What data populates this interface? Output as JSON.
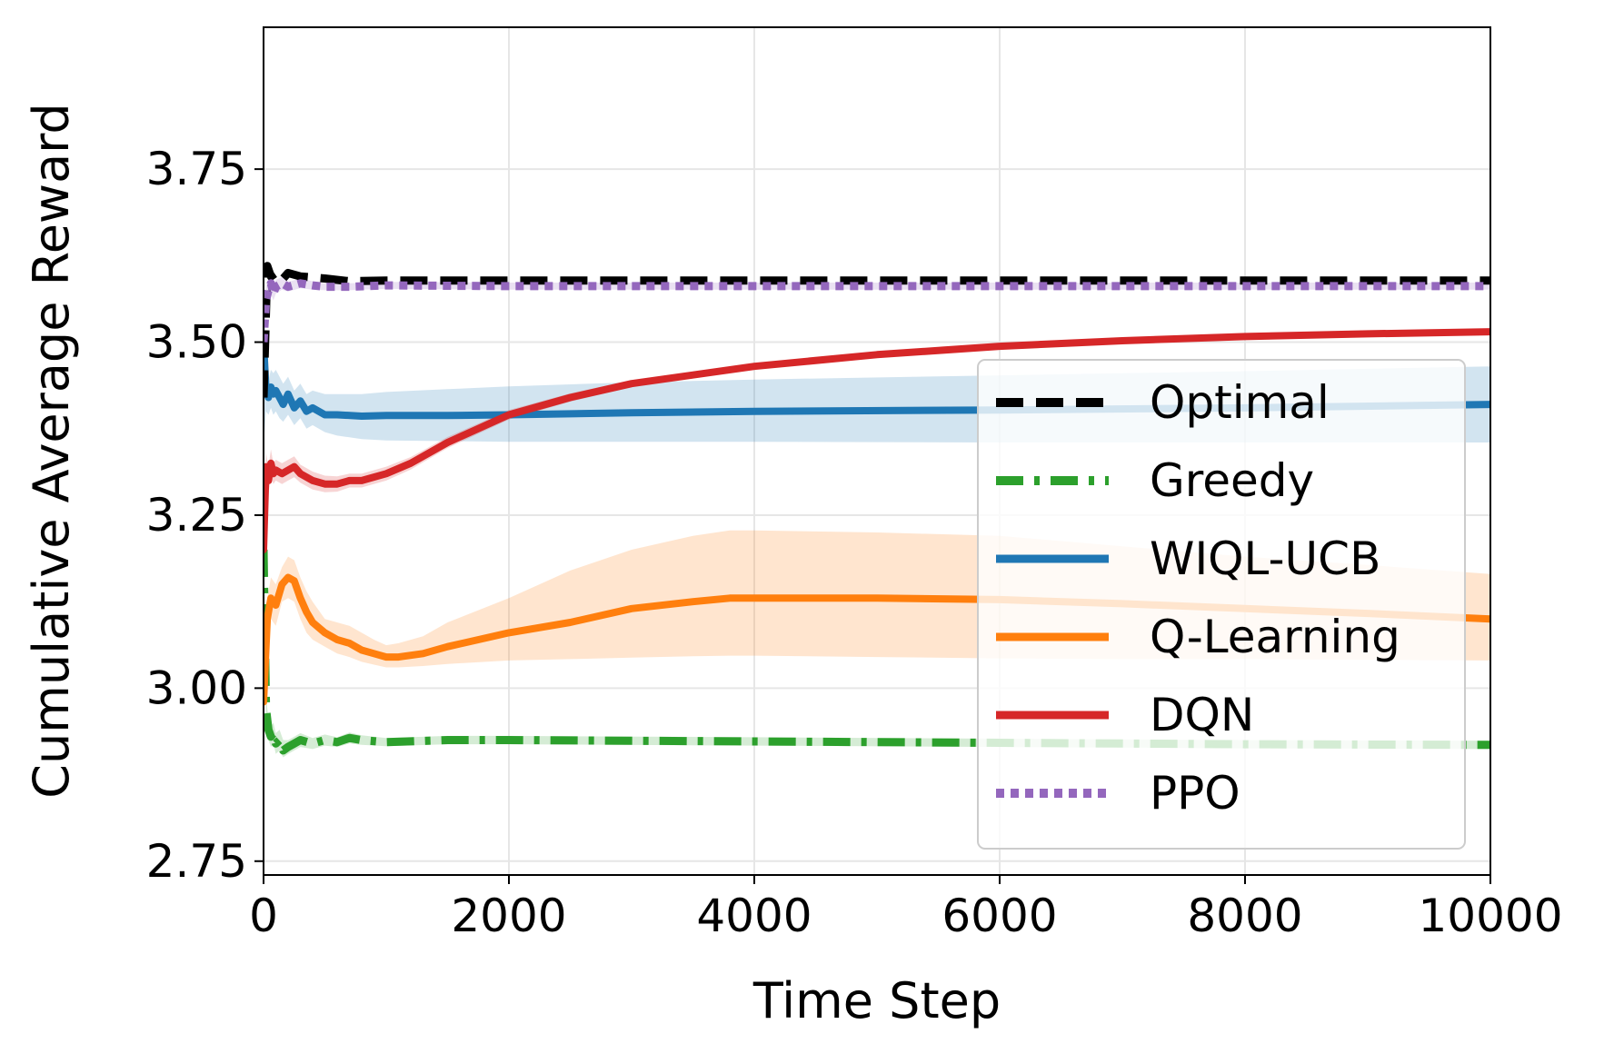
{
  "chart_data": {
    "type": "line",
    "title": "",
    "xlabel": "Time Step",
    "ylabel": "Cumulative Average Reward",
    "xlim": [
      0,
      10000
    ],
    "ylim": [
      2.73,
      3.955
    ],
    "xticks": [
      0,
      2000,
      4000,
      6000,
      8000,
      10000
    ],
    "xtick_labels": [
      "0",
      "2000",
      "4000",
      "6000",
      "8000",
      "10000"
    ],
    "yticks": [
      2.75,
      3.0,
      3.25,
      3.5,
      3.75
    ],
    "ytick_labels": [
      "2.75",
      "3.00",
      "3.25",
      "3.50",
      "3.75"
    ],
    "grid": true,
    "legend_position": "lower-right",
    "series": [
      {
        "name": "Optimal",
        "color": "#000000",
        "style": "dashed",
        "x": [
          0,
          30,
          60,
          100,
          150,
          200,
          300,
          500,
          700,
          1000,
          2000,
          4000,
          6000,
          8000,
          10000
        ],
        "y": [
          3.42,
          3.61,
          3.595,
          3.6,
          3.59,
          3.6,
          3.595,
          3.592,
          3.588,
          3.589,
          3.589,
          3.589,
          3.589,
          3.589,
          3.589
        ]
      },
      {
        "name": "Greedy",
        "color": "#2ca02c",
        "style": "dashdot",
        "x": [
          0,
          20,
          40,
          60,
          80,
          100,
          130,
          160,
          200,
          250,
          300,
          400,
          500,
          600,
          700,
          800,
          1000,
          1500,
          2000,
          4000,
          6000,
          8000,
          10000
        ],
        "y": [
          3.2,
          2.97,
          2.94,
          2.93,
          2.935,
          2.92,
          2.925,
          2.91,
          2.915,
          2.92,
          2.925,
          2.92,
          2.925,
          2.922,
          2.928,
          2.925,
          2.922,
          2.925,
          2.925,
          2.923,
          2.921,
          2.919,
          2.918
        ],
        "band_lower": [
          3.15,
          2.95,
          2.925,
          2.915,
          2.92,
          2.905,
          2.91,
          2.9,
          2.905,
          2.91,
          2.915,
          2.912,
          2.917,
          2.915,
          2.92,
          2.918,
          2.916,
          2.919,
          2.919,
          2.917,
          2.915,
          2.913,
          2.912
        ],
        "band_upper": [
          3.25,
          2.99,
          2.955,
          2.945,
          2.95,
          2.935,
          2.94,
          2.925,
          2.925,
          2.93,
          2.935,
          2.928,
          2.933,
          2.929,
          2.936,
          2.932,
          2.928,
          2.931,
          2.931,
          2.929,
          2.927,
          2.925,
          2.924
        ]
      },
      {
        "name": "WIQL-UCB",
        "color": "#1f77b4",
        "style": "solid",
        "x": [
          0,
          20,
          40,
          60,
          80,
          100,
          130,
          160,
          200,
          250,
          300,
          350,
          400,
          500,
          600,
          800,
          1000,
          1500,
          2000,
          3000,
          4000,
          6000,
          8000,
          10000
        ],
        "y": [
          3.5,
          3.43,
          3.42,
          3.435,
          3.425,
          3.43,
          3.42,
          3.41,
          3.425,
          3.405,
          3.415,
          3.4,
          3.405,
          3.395,
          3.395,
          3.393,
          3.394,
          3.394,
          3.395,
          3.398,
          3.4,
          3.402,
          3.405,
          3.41
        ],
        "band_lower": [
          3.35,
          3.4,
          3.395,
          3.405,
          3.395,
          3.4,
          3.39,
          3.385,
          3.395,
          3.38,
          3.39,
          3.375,
          3.38,
          3.37,
          3.365,
          3.36,
          3.358,
          3.357,
          3.356,
          3.356,
          3.356,
          3.355,
          3.355,
          3.355
        ],
        "band_upper": [
          3.6,
          3.46,
          3.445,
          3.46,
          3.455,
          3.46,
          3.45,
          3.44,
          3.45,
          3.43,
          3.44,
          3.425,
          3.43,
          3.425,
          3.425,
          3.425,
          3.428,
          3.432,
          3.436,
          3.442,
          3.446,
          3.452,
          3.458,
          3.465
        ]
      },
      {
        "name": "Q-Learning",
        "color": "#ff7f0e",
        "style": "solid",
        "x": [
          0,
          30,
          60,
          100,
          150,
          200,
          250,
          300,
          350,
          400,
          500,
          600,
          700,
          800,
          900,
          1000,
          1100,
          1300,
          1500,
          2000,
          2500,
          3000,
          3500,
          3800,
          4000,
          5000,
          6000,
          7000,
          8000,
          9000,
          10000
        ],
        "y": [
          2.98,
          3.1,
          3.13,
          3.12,
          3.15,
          3.16,
          3.155,
          3.13,
          3.11,
          3.095,
          3.08,
          3.07,
          3.065,
          3.055,
          3.05,
          3.045,
          3.045,
          3.05,
          3.06,
          3.08,
          3.095,
          3.115,
          3.125,
          3.13,
          3.13,
          3.13,
          3.128,
          3.122,
          3.115,
          3.108,
          3.1
        ],
        "band_lower": [
          2.95,
          3.07,
          3.1,
          3.09,
          3.125,
          3.13,
          3.125,
          3.1,
          3.08,
          3.07,
          3.06,
          3.05,
          3.045,
          3.038,
          3.034,
          3.03,
          3.03,
          3.032,
          3.035,
          3.04,
          3.042,
          3.044,
          3.046,
          3.047,
          3.047,
          3.045,
          3.043,
          3.042,
          3.042,
          3.041,
          3.04
        ],
        "band_upper": [
          3.01,
          3.13,
          3.16,
          3.15,
          3.175,
          3.19,
          3.185,
          3.16,
          3.14,
          3.125,
          3.1,
          3.095,
          3.09,
          3.08,
          3.07,
          3.062,
          3.065,
          3.075,
          3.095,
          3.13,
          3.17,
          3.2,
          3.22,
          3.228,
          3.228,
          3.225,
          3.22,
          3.205,
          3.19,
          3.178,
          3.165
        ]
      },
      {
        "name": "DQN",
        "color": "#d62728",
        "style": "solid",
        "x": [
          0,
          20,
          40,
          60,
          80,
          100,
          150,
          200,
          250,
          300,
          400,
          500,
          600,
          700,
          800,
          1000,
          1200,
          1500,
          2000,
          2500,
          3000,
          4000,
          5000,
          6000,
          7000,
          8000,
          9000,
          10000
        ],
        "y": [
          3.2,
          3.32,
          3.3,
          3.325,
          3.31,
          3.315,
          3.31,
          3.315,
          3.32,
          3.31,
          3.3,
          3.295,
          3.295,
          3.3,
          3.3,
          3.31,
          3.325,
          3.355,
          3.395,
          3.42,
          3.44,
          3.465,
          3.482,
          3.494,
          3.502,
          3.508,
          3.512,
          3.515
        ],
        "band_lower": [
          3.15,
          3.3,
          3.28,
          3.305,
          3.295,
          3.3,
          3.295,
          3.3,
          3.305,
          3.297,
          3.287,
          3.283,
          3.284,
          3.29,
          3.29,
          3.3,
          3.316,
          3.347,
          3.388,
          3.414,
          3.435,
          3.461,
          3.479,
          3.491,
          3.5,
          3.506,
          3.51,
          3.513
        ],
        "band_upper": [
          3.25,
          3.34,
          3.32,
          3.345,
          3.325,
          3.33,
          3.325,
          3.33,
          3.335,
          3.323,
          3.313,
          3.307,
          3.306,
          3.31,
          3.31,
          3.32,
          3.334,
          3.363,
          3.402,
          3.426,
          3.445,
          3.469,
          3.485,
          3.497,
          3.504,
          3.51,
          3.514,
          3.517
        ]
      },
      {
        "name": "PPO",
        "color": "#9467bd",
        "style": "dotted",
        "x": [
          0,
          20,
          40,
          60,
          80,
          100,
          150,
          200,
          300,
          400,
          500,
          700,
          1000,
          2000,
          4000,
          6000,
          8000,
          10000
        ],
        "y": [
          3.5,
          3.56,
          3.575,
          3.585,
          3.57,
          3.58,
          3.585,
          3.58,
          3.585,
          3.582,
          3.58,
          3.58,
          3.582,
          3.581,
          3.581,
          3.581,
          3.581,
          3.581
        ],
        "band_lower": [
          3.45,
          3.54,
          3.56,
          3.57,
          3.56,
          3.57,
          3.576,
          3.573,
          3.578,
          3.576,
          3.575,
          3.575,
          3.577,
          3.576,
          3.576,
          3.576,
          3.576,
          3.576
        ],
        "band_upper": [
          3.55,
          3.58,
          3.59,
          3.6,
          3.58,
          3.59,
          3.594,
          3.587,
          3.592,
          3.588,
          3.585,
          3.585,
          3.587,
          3.586,
          3.586,
          3.586,
          3.586,
          3.586
        ]
      }
    ]
  }
}
